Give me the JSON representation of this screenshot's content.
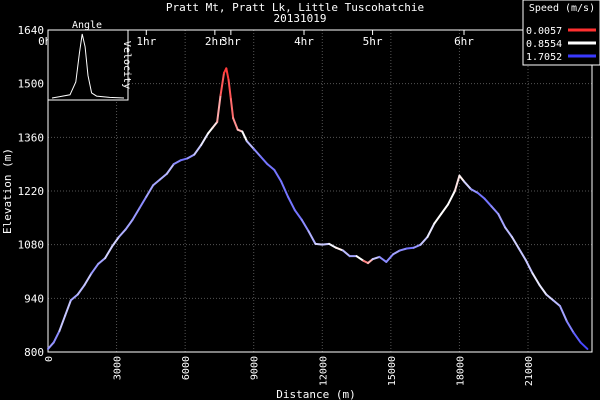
{
  "chart_data": {
    "type": "line",
    "title": "Pratt Mt, Pratt Lk, Little Tuscohatchie",
    "subtitle": "20131019",
    "xlabel": "Distance (m)",
    "ylabel": "Elevation (m)",
    "xlim": [
      0,
      23800
    ],
    "ylim": [
      800,
      1640
    ],
    "grid": true,
    "y_ticks": [
      800,
      940,
      1080,
      1220,
      1360,
      1500,
      1640
    ],
    "x_ticks": [
      0,
      3000,
      6000,
      9000,
      12000,
      15000,
      18000,
      21000
    ],
    "time_ticks": [
      {
        "label": "0hr",
        "x": 0
      },
      {
        "label": "1hr",
        "x": 4300
      },
      {
        "label": "2hr",
        "x": 7300
      },
      {
        "label": "3hr",
        "x": 8000
      },
      {
        "label": "4hr",
        "x": 11200
      },
      {
        "label": "5hr",
        "x": 14200
      },
      {
        "label": "6hr",
        "x": 18200
      }
    ],
    "legend": {
      "title": "Speed (m/s)",
      "placement": "top-right",
      "entries": [
        {
          "label": "0.0057",
          "color": "#ff3030"
        },
        {
          "label": "0.8554",
          "color": "#ffffff"
        },
        {
          "label": "1.7052",
          "color": "#3a3aff"
        }
      ]
    },
    "inset": {
      "left_label": "Angle",
      "right_label": "Velocity",
      "placement": "top-left",
      "points": [
        [
          0,
          0
        ],
        [
          0.1,
          0.02
        ],
        [
          0.25,
          0.05
        ],
        [
          0.33,
          0.25
        ],
        [
          0.38,
          0.7
        ],
        [
          0.42,
          1.0
        ],
        [
          0.46,
          0.8
        ],
        [
          0.5,
          0.35
        ],
        [
          0.55,
          0.08
        ],
        [
          0.62,
          0.03
        ],
        [
          0.8,
          0.01
        ],
        [
          1,
          0
        ]
      ]
    },
    "series": [
      {
        "points": [
          [
            0,
            808,
            1.1
          ],
          [
            250,
            825,
            1.5
          ],
          [
            500,
            855,
            1.2
          ],
          [
            750,
            895,
            1.0
          ],
          [
            1000,
            935,
            1.2
          ],
          [
            1300,
            950,
            1.3
          ],
          [
            1600,
            975,
            1.0
          ],
          [
            1900,
            1005,
            1.2
          ],
          [
            2200,
            1030,
            1.4
          ],
          [
            2500,
            1045,
            1.1
          ],
          [
            2800,
            1075,
            1.0
          ],
          [
            3100,
            1100,
            1.1
          ],
          [
            3400,
            1120,
            1.3
          ],
          [
            3700,
            1145,
            1.2
          ],
          [
            4000,
            1175,
            1.4
          ],
          [
            4300,
            1205,
            1.3
          ],
          [
            4600,
            1235,
            1.2
          ],
          [
            4900,
            1250,
            1.3
          ],
          [
            5200,
            1265,
            1.1
          ],
          [
            5500,
            1290,
            1.2
          ],
          [
            5800,
            1300,
            1.5
          ],
          [
            6100,
            1305,
            1.4
          ],
          [
            6400,
            1315,
            1.2
          ],
          [
            6700,
            1340,
            1.0
          ],
          [
            7000,
            1370,
            0.9
          ],
          [
            7200,
            1385,
            0.8
          ],
          [
            7400,
            1400,
            0.7
          ],
          [
            7550,
            1470,
            0.3
          ],
          [
            7700,
            1528,
            0.05
          ],
          [
            7800,
            1540,
            0.02
          ],
          [
            7900,
            1510,
            0.1
          ],
          [
            8000,
            1460,
            0.2
          ],
          [
            8100,
            1410,
            0.3
          ],
          [
            8300,
            1380,
            0.5
          ],
          [
            8500,
            1375,
            0.7
          ],
          [
            8700,
            1350,
            1.0
          ],
          [
            9000,
            1330,
            1.3
          ],
          [
            9300,
            1310,
            1.4
          ],
          [
            9600,
            1290,
            1.5
          ],
          [
            9900,
            1275,
            1.4
          ],
          [
            10200,
            1245,
            1.5
          ],
          [
            10500,
            1205,
            1.4
          ],
          [
            10800,
            1170,
            1.5
          ],
          [
            11100,
            1145,
            1.4
          ],
          [
            11400,
            1115,
            1.3
          ],
          [
            11700,
            1082,
            1.1
          ],
          [
            12000,
            1080,
            1.0
          ],
          [
            12300,
            1082,
            1.2
          ],
          [
            12600,
            1072,
            0.6
          ],
          [
            12900,
            1065,
            1.0
          ],
          [
            13200,
            1050,
            1.3
          ],
          [
            13500,
            1050,
            1.2
          ],
          [
            13800,
            1038,
            0.5
          ],
          [
            14000,
            1032,
            0.2
          ],
          [
            14200,
            1042,
            0.9
          ],
          [
            14500,
            1048,
            1.3
          ],
          [
            14800,
            1035,
            1.4
          ],
          [
            15100,
            1055,
            1.3
          ],
          [
            15400,
            1065,
            1.2
          ],
          [
            15700,
            1070,
            1.5
          ],
          [
            16000,
            1072,
            1.4
          ],
          [
            16300,
            1080,
            1.2
          ],
          [
            16600,
            1100,
            1.0
          ],
          [
            16900,
            1135,
            0.9
          ],
          [
            17200,
            1160,
            0.8
          ],
          [
            17500,
            1185,
            0.9
          ],
          [
            17800,
            1220,
            0.8
          ],
          [
            18000,
            1260,
            0.7
          ],
          [
            18200,
            1245,
            0.9
          ],
          [
            18500,
            1225,
            1.2
          ],
          [
            18800,
            1215,
            1.4
          ],
          [
            19100,
            1200,
            1.5
          ],
          [
            19400,
            1180,
            1.4
          ],
          [
            19700,
            1160,
            1.3
          ],
          [
            20000,
            1125,
            1.2
          ],
          [
            20300,
            1100,
            1.1
          ],
          [
            20600,
            1070,
            1.0
          ],
          [
            20900,
            1040,
            1.2
          ],
          [
            21200,
            1005,
            1.0
          ],
          [
            21500,
            975,
            0.9
          ],
          [
            21800,
            950,
            1.0
          ],
          [
            22100,
            935,
            1.1
          ],
          [
            22400,
            920,
            1.2
          ],
          [
            22700,
            880,
            1.3
          ],
          [
            23000,
            850,
            1.5
          ],
          [
            23300,
            825,
            1.6
          ],
          [
            23600,
            808,
            1.7
          ]
        ]
      }
    ]
  }
}
